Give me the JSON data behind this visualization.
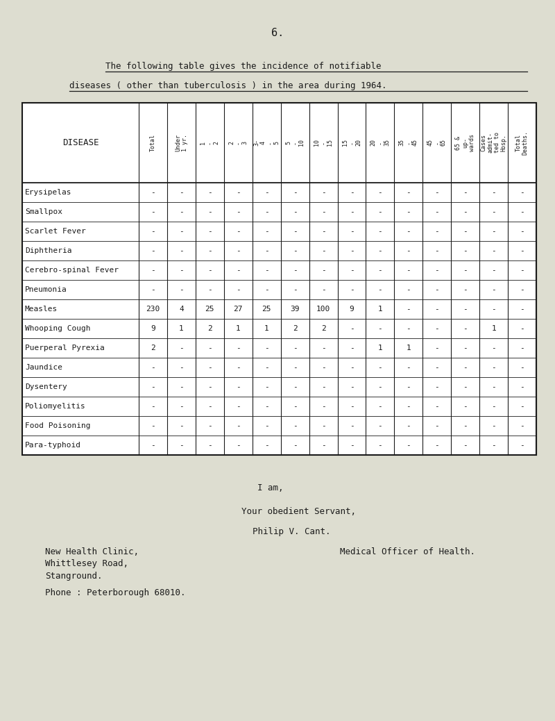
{
  "page_number": "6.",
  "title_line1": "The following table gives the incidence of notifiable",
  "title_line2": "diseases ( other than tuberculosis ) in the area during 1964.",
  "disease_col_label": "DISEASE",
  "col_headers_text": [
    "Total",
    "Under\n1 yr.",
    "1\n-\n2",
    "2\n-\n3",
    "3-\n4\n-\n5",
    "5\n-\n10",
    "10\n-\n15",
    "15\n-\n20",
    "20\n-\n35",
    "35\n-\n45",
    "45\n-\n65",
    "65 &\nup-\nwards",
    "Cases\nadmit-\nted to\nHosp.",
    "Total\nDeaths."
  ],
  "diseases": [
    "Erysipelas",
    "Smallpox",
    "Scarlet Fever",
    "Diphtheria",
    "Cerebro-spinal Fever",
    "Pneumonia",
    "Measles",
    "Whooping Cough",
    "Puerperal Pyrexia",
    "Jaundice",
    "Dysentery",
    "Poliomyelitis",
    "Food Poisoning",
    "Para-typhoid"
  ],
  "table_data": [
    [
      "-",
      "-",
      "-",
      "-",
      "-",
      "-",
      "-",
      "-",
      "-",
      "-",
      "-",
      "-",
      "-",
      "-"
    ],
    [
      "-",
      "-",
      "-",
      "-",
      "-",
      "-",
      "-",
      "-",
      "-",
      "-",
      "-",
      "-",
      "-",
      "-"
    ],
    [
      "-",
      "-",
      "-",
      "-",
      "-",
      "-",
      "-",
      "-",
      "-",
      "-",
      "-",
      "-",
      "-",
      "-"
    ],
    [
      "-",
      "-",
      "-",
      "-",
      "-",
      "-",
      "-",
      "-",
      "-",
      "-",
      "-",
      "-",
      "-",
      "-"
    ],
    [
      "-",
      "-",
      "-",
      "-",
      "-",
      "-",
      "-",
      "-",
      "-",
      "-",
      "-",
      "-",
      "-",
      "-"
    ],
    [
      "-",
      "-",
      "-",
      "-",
      "-",
      "-",
      "-",
      "-",
      "-",
      "-",
      "-",
      "-",
      "-",
      "-"
    ],
    [
      "230",
      "4",
      "25",
      "27",
      "25",
      "39",
      "100",
      "9",
      "1",
      "-",
      "-",
      "-",
      "-",
      "-"
    ],
    [
      "9",
      "1",
      "2",
      "1",
      "1",
      "2",
      "2",
      "-",
      "-",
      "-",
      "-",
      "-",
      "1",
      "-"
    ],
    [
      "2",
      "-",
      "-",
      "-",
      "-",
      "-",
      "-",
      "-",
      "1",
      "1",
      "-",
      "-",
      "-",
      "-"
    ],
    [
      "-",
      "-",
      "-",
      "-",
      "-",
      "-",
      "-",
      "-",
      "-",
      "-",
      "-",
      "-",
      "-",
      "-"
    ],
    [
      "-",
      "-",
      "-",
      "-",
      "-",
      "-",
      "-",
      "-",
      "-",
      "-",
      "-",
      "-",
      "-",
      "-"
    ],
    [
      "-",
      "-",
      "-",
      "-",
      "-",
      "-",
      "-",
      "-",
      "-",
      "-",
      "-",
      "-",
      "-",
      "-"
    ],
    [
      "-",
      "-",
      "-",
      "-",
      "-",
      "-",
      "-",
      "-",
      "-",
      "-",
      "-",
      "-",
      "-",
      "-"
    ],
    [
      "-",
      "-",
      "-",
      "-",
      "-",
      "-",
      "-",
      "-",
      "-",
      "-",
      "-",
      "-",
      "-",
      "-"
    ]
  ],
  "closing_line1": "I am,",
  "closing_line2": "Your obedient Servant,",
  "closing_line3": "Philip V. Cant.",
  "address_line1": "New Health Clinic,",
  "address_line2": "Whittlesey Road,",
  "address_line3": "Stanground.",
  "address_line4": "Phone : Peterborough 68010.",
  "job_title": "Medical Officer of Health.",
  "bg_color": "#ddddd0",
  "text_color": "#1a1a1a"
}
